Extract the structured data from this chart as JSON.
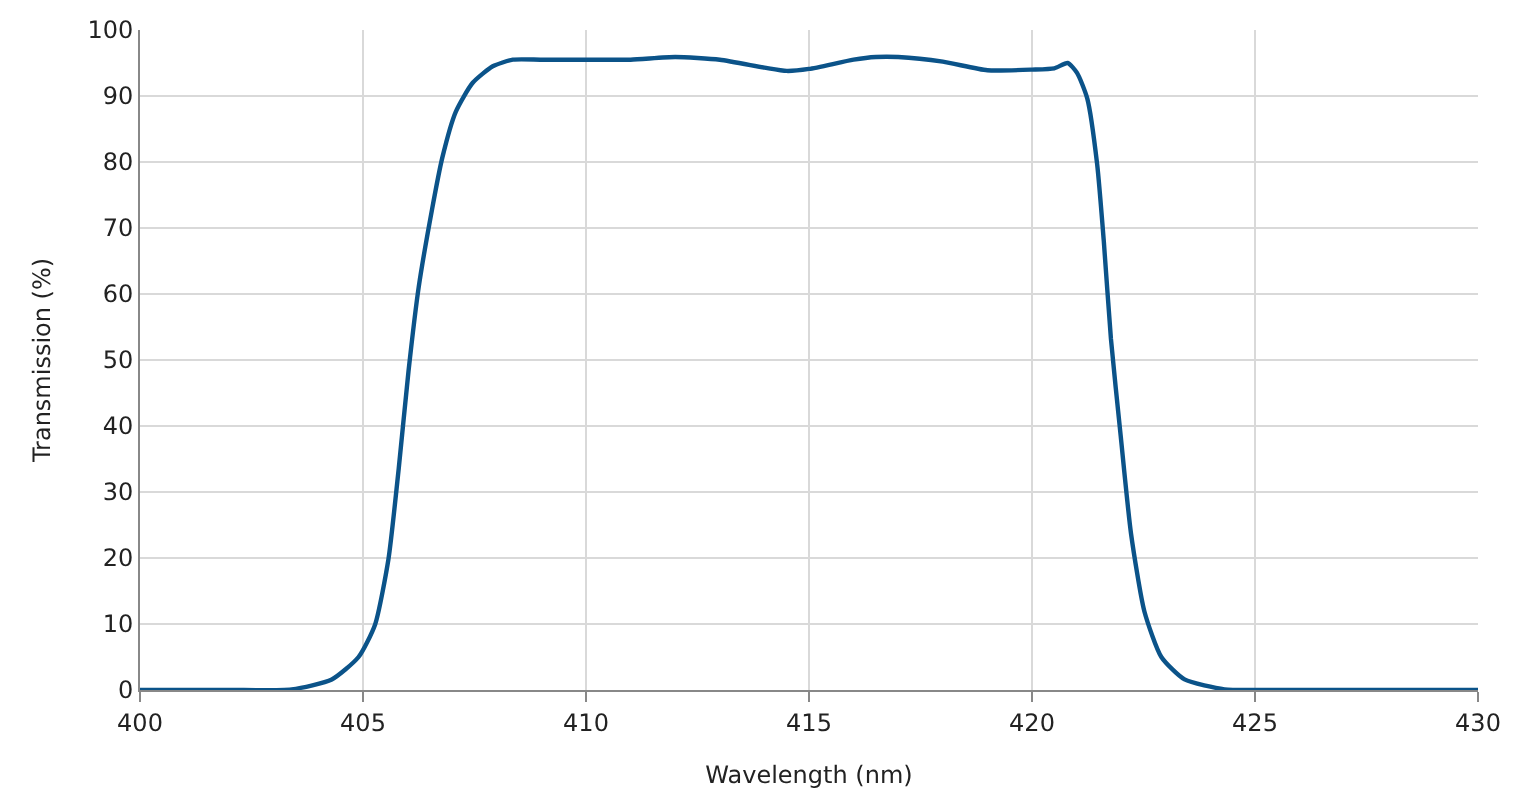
{
  "chart_data": {
    "type": "line",
    "xlabel": "Wavelength (nm)",
    "ylabel": "Transmission (%)",
    "xlim": [
      400,
      430
    ],
    "xticks": [
      400,
      405,
      410,
      415,
      420,
      425,
      430
    ],
    "ylim": [
      0,
      100
    ],
    "yticks": [
      0,
      10,
      20,
      30,
      40,
      50,
      60,
      70,
      80,
      90,
      100
    ],
    "grid": true,
    "legend": false,
    "marker": "none",
    "line_style": "solid",
    "series": [
      {
        "color": "#0b5389",
        "x": [
          400,
          402,
          403.4,
          404.3,
          404.9,
          405.27,
          405.57,
          405.8,
          406.02,
          406.25,
          406.55,
          406.78,
          407.08,
          407.46,
          407.91,
          408.36,
          409,
          410,
          411,
          412,
          413,
          414,
          414.5,
          415,
          416,
          416.5,
          417,
          418,
          419,
          420,
          420.5,
          420.8,
          421.01,
          421.24,
          421.46,
          421.61,
          421.77,
          421.99,
          422.22,
          422.52,
          422.9,
          423.42,
          424.32,
          425,
          427,
          430
        ],
        "values": [
          0,
          0,
          0.1,
          1.6,
          5,
          9.9,
          19.8,
          33.5,
          48.3,
          61.1,
          72.9,
          80.7,
          87.6,
          92,
          94.5,
          95.5,
          95.5,
          95.5,
          95.5,
          95.9,
          95.5,
          94.3,
          93.8,
          94.1,
          95.5,
          95.9,
          95.9,
          95.2,
          93.9,
          94,
          94.2,
          95,
          93.5,
          89.6,
          79.7,
          68,
          53.2,
          38.4,
          23.7,
          11.9,
          5,
          1.6,
          0.1,
          0,
          0,
          0
        ]
      }
    ]
  }
}
